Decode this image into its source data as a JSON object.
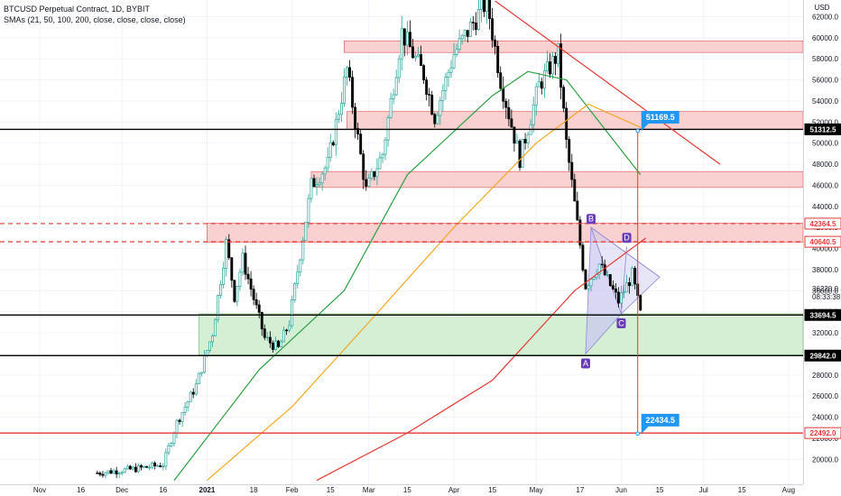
{
  "legend": {
    "title": "BTCUSD Perpetual Contract, 1D, BYBIT",
    "sma_text": "SMAs (21, 50, 100, 200, close, close, close, close)"
  },
  "colors": {
    "up": "#26a69a",
    "down": "#000000",
    "sma50": "#2ea043",
    "sma100": "#f5a623",
    "sma200": "#e53935",
    "resistance_zone": "#f8c9c9",
    "support_zone": "#cdeccd",
    "pattern": "#c9c6f0",
    "callout": "#2196f3",
    "point_label": "#6a3db8"
  },
  "chart_data": {
    "type": "candlestick",
    "title": "BTCUSD Perpetual Contract, 1D, BYBIT",
    "currency": "USD",
    "ylim": [
      18000,
      63500
    ],
    "x_ticks": [
      "Nov",
      "16",
      "Dec",
      "16",
      "2021",
      "18",
      "Feb",
      "15",
      "Mar",
      "15",
      "Apr",
      "15",
      "May",
      "17",
      "Jun",
      "15",
      "Jul",
      "15",
      "Aug"
    ],
    "y_ticks": [
      20000,
      22000,
      24000,
      26000,
      28000,
      30000,
      32000,
      34000,
      36000,
      38000,
      40000,
      42000,
      44000,
      46000,
      48000,
      50000,
      52000,
      54000,
      56000,
      58000,
      60000,
      62000
    ],
    "price_path": [
      [
        "2020-11-22",
        18700
      ],
      [
        "2020-12-06",
        19100
      ],
      [
        "2020-12-16",
        19500
      ],
      [
        "2020-12-21",
        23500
      ],
      [
        "2020-12-28",
        27000
      ],
      [
        "2021-01-03",
        32000
      ],
      [
        "2021-01-08",
        40500
      ],
      [
        "2021-01-11",
        35500
      ],
      [
        "2021-01-14",
        39000
      ],
      [
        "2021-01-22",
        31500
      ],
      [
        "2021-01-27",
        30500
      ],
      [
        "2021-01-31",
        33000
      ],
      [
        "2021-02-08",
        46000
      ],
      [
        "2021-02-14",
        48000
      ],
      [
        "2021-02-21",
        57000
      ],
      [
        "2021-02-28",
        45500
      ],
      [
        "2021-03-06",
        49000
      ],
      [
        "2021-03-13",
        60500
      ],
      [
        "2021-03-21",
        56500
      ],
      [
        "2021-03-25",
        52500
      ],
      [
        "2021-04-01",
        58500
      ],
      [
        "2021-04-13",
        63500
      ],
      [
        "2021-04-18",
        56000
      ],
      [
        "2021-04-25",
        48500
      ],
      [
        "2021-05-02",
        55500
      ],
      [
        "2021-05-09",
        58500
      ],
      [
        "2021-05-12",
        50000
      ],
      [
        "2021-05-19",
        36500
      ],
      [
        "2021-05-24",
        38500
      ],
      [
        "2021-05-31",
        35000
      ],
      [
        "2021-06-05",
        37500
      ],
      [
        "2021-06-08",
        33800
      ]
    ],
    "sma_series": [
      {
        "name": "SMA 50",
        "points": [
          [
            "2020-12-20",
            18000
          ],
          [
            "2021-01-20",
            28500
          ],
          [
            "2021-02-20",
            36000
          ],
          [
            "2021-03-15",
            47000
          ],
          [
            "2021-04-15",
            54500
          ],
          [
            "2021-04-28",
            56800
          ],
          [
            "2021-05-12",
            56000
          ],
          [
            "2021-06-08",
            47000
          ]
        ]
      },
      {
        "name": "SMA 100",
        "points": [
          [
            "2021-01-01",
            18000
          ],
          [
            "2021-02-01",
            25000
          ],
          [
            "2021-03-01",
            33000
          ],
          [
            "2021-04-01",
            42000
          ],
          [
            "2021-05-01",
            50000
          ],
          [
            "2021-05-20",
            53700
          ],
          [
            "2021-06-08",
            51500
          ]
        ]
      },
      {
        "name": "SMA 200",
        "points": [
          [
            "2021-02-10",
            18000
          ],
          [
            "2021-03-15",
            22500
          ],
          [
            "2021-04-15",
            27500
          ],
          [
            "2021-05-15",
            36000
          ],
          [
            "2021-06-10",
            41000
          ]
        ]
      }
    ],
    "horizontal_levels": [
      {
        "label": "51312.5",
        "price": 51312.5,
        "style": "solid",
        "color": "#000000"
      },
      {
        "label": "42364.5",
        "price": 42364.5,
        "style": "dashed",
        "color": "#e53935"
      },
      {
        "label": "40640.5",
        "price": 40640.5,
        "style": "dashed",
        "color": "#e53935"
      },
      {
        "label": "33694.5",
        "price": 33694.5,
        "style": "solid",
        "color": "#000000"
      },
      {
        "label": "29842.0",
        "price": 29842.0,
        "style": "solid",
        "color": "#000000"
      },
      {
        "label": "22492.0",
        "price": 22492.0,
        "style": "solid",
        "color": "#e53935"
      }
    ],
    "zones": [
      {
        "type": "resistance",
        "from": "2021-02-20",
        "to": "2021-08-10",
        "low": 58600,
        "high": 59700
      },
      {
        "type": "resistance",
        "from": "2021-02-21",
        "to": "2021-08-10",
        "low": 51300,
        "high": 53000
      },
      {
        "type": "resistance",
        "from": "2021-02-08",
        "to": "2021-08-10",
        "low": 45800,
        "high": 47300
      },
      {
        "type": "resistance",
        "from": "2021-01-01",
        "to": "2021-08-10",
        "low": 40600,
        "high": 42400
      },
      {
        "type": "support",
        "from": "2020-12-29",
        "to": "2021-08-10",
        "low": 29900,
        "high": 33800
      }
    ],
    "trendline": {
      "from": [
        "2021-04-16",
        63500
      ],
      "to": [
        "2021-07-07",
        48000
      ]
    },
    "pattern_points": [
      {
        "label": "A",
        "date": "2021-05-19",
        "price": 30000
      },
      {
        "label": "B",
        "date": "2021-05-21",
        "price": 42000
      },
      {
        "label": "C",
        "date": "2021-06-01",
        "price": 33800
      },
      {
        "label": "D",
        "date": "2021-06-03",
        "price": 40200
      }
    ],
    "triangle_apex": [
      "2021-06-15",
      37300
    ],
    "targets": [
      {
        "label": "51169.5",
        "date": "2021-06-07",
        "price": 51169.5
      },
      {
        "label": "22434.5",
        "date": "2021-06-07",
        "price": 22434.5
      }
    ],
    "price_tags": [
      {
        "label": "62000.0",
        "price": 62000
      },
      {
        "label": "36220.0",
        "price": 36220
      }
    ],
    "countdown": "08:33:38"
  }
}
